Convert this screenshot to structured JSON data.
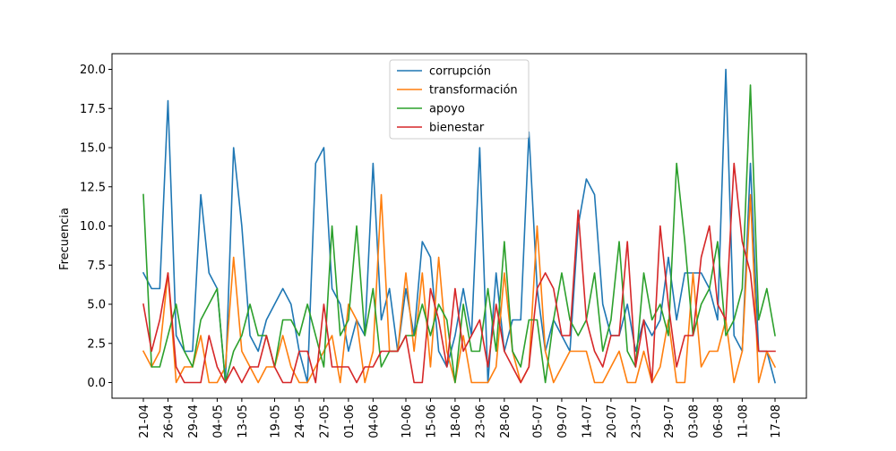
{
  "chart_data": {
    "type": "line",
    "title": "",
    "xlabel": "",
    "ylabel": "Frecuencia",
    "ylim": [
      -1.0,
      21.0
    ],
    "yticks": [
      0.0,
      2.5,
      5.0,
      7.5,
      10.0,
      12.5,
      15.0,
      17.5,
      20.0
    ],
    "ytick_labels": [
      "0.0",
      "2.5",
      "5.0",
      "7.5",
      "10.0",
      "12.5",
      "15.0",
      "17.5",
      "20.0"
    ],
    "x_count": 78,
    "xticks": [
      {
        "label": "21-04",
        "index": 0
      },
      {
        "label": "26-04",
        "index": 3
      },
      {
        "label": "29-04",
        "index": 6
      },
      {
        "label": "04-05",
        "index": 9
      },
      {
        "label": "13-05",
        "index": 12
      },
      {
        "label": "19-05",
        "index": 16
      },
      {
        "label": "24-05",
        "index": 19
      },
      {
        "label": "27-05",
        "index": 22
      },
      {
        "label": "01-06",
        "index": 25
      },
      {
        "label": "04-06",
        "index": 28
      },
      {
        "label": "10-06",
        "index": 32
      },
      {
        "label": "15-06",
        "index": 35
      },
      {
        "label": "18-06",
        "index": 38
      },
      {
        "label": "23-06",
        "index": 41
      },
      {
        "label": "28-06",
        "index": 44
      },
      {
        "label": "05-07",
        "index": 48
      },
      {
        "label": "09-07",
        "index": 51
      },
      {
        "label": "14-07",
        "index": 54
      },
      {
        "label": "20-07",
        "index": 57
      },
      {
        "label": "23-07",
        "index": 60
      },
      {
        "label": "29-07",
        "index": 64
      },
      {
        "label": "03-08",
        "index": 67
      },
      {
        "label": "06-08",
        "index": 70
      },
      {
        "label": "11-08",
        "index": 73
      },
      {
        "label": "17-08",
        "index": 77
      }
    ],
    "legend_position": "upper center",
    "series": [
      {
        "name": "corrupción",
        "color": "#1f77b4",
        "values": [
          7,
          6,
          6,
          18,
          3,
          2,
          2,
          12,
          7,
          6,
          0,
          15,
          10,
          3,
          2,
          4,
          5,
          6,
          5,
          2,
          0,
          14,
          15,
          6,
          5,
          2,
          4,
          3,
          14,
          4,
          6,
          2,
          6,
          3,
          9,
          8,
          2,
          1,
          3,
          6,
          3,
          15,
          0,
          7,
          2,
          4,
          4,
          16,
          6,
          2,
          4,
          3,
          2,
          10,
          13,
          12,
          5,
          3,
          3,
          5,
          2,
          4,
          3,
          4,
          8,
          4,
          7,
          7,
          7,
          6,
          4,
          20,
          3,
          2,
          14,
          2,
          2,
          0
        ]
      },
      {
        "name": "transformación",
        "color": "#ff7f0e",
        "values": [
          2,
          1,
          2,
          7,
          0,
          1,
          1,
          3,
          0,
          0,
          1,
          8,
          2,
          1,
          0,
          1,
          1,
          3,
          1,
          0,
          0,
          1,
          2,
          3,
          0,
          5,
          4,
          0,
          2,
          12,
          2,
          2,
          7,
          2,
          7,
          1,
          8,
          2,
          0,
          3,
          0,
          0,
          0,
          1,
          7,
          2,
          0,
          1,
          10,
          2,
          0,
          1,
          2,
          2,
          2,
          0,
          0,
          1,
          2,
          0,
          0,
          2,
          0,
          1,
          4,
          0,
          0,
          7,
          1,
          2,
          2,
          4,
          0,
          2,
          12,
          0,
          2,
          1
        ]
      },
      {
        "name": "apoyo",
        "color": "#2ca02c",
        "values": [
          12,
          1,
          1,
          3,
          5,
          2,
          1,
          4,
          5,
          6,
          0,
          2,
          3,
          5,
          3,
          3,
          1,
          4,
          4,
          3,
          5,
          3,
          1,
          10,
          3,
          4,
          10,
          3,
          6,
          1,
          2,
          2,
          3,
          3,
          5,
          3,
          5,
          4,
          0,
          5,
          2,
          2,
          6,
          2,
          9,
          2,
          1,
          4,
          4,
          0,
          4,
          7,
          4,
          3,
          4,
          7,
          2,
          4,
          9,
          2,
          1,
          7,
          4,
          5,
          3,
          14,
          9,
          3,
          5,
          6,
          9,
          3,
          4,
          6,
          19,
          4,
          6,
          3
        ]
      },
      {
        "name": "bienestar",
        "color": "#d62728",
        "values": [
          5,
          2,
          4,
          7,
          1,
          0,
          0,
          0,
          3,
          1,
          0,
          1,
          0,
          1,
          1,
          3,
          1,
          0,
          0,
          2,
          2,
          0,
          5,
          1,
          1,
          1,
          0,
          1,
          1,
          2,
          2,
          2,
          3,
          0,
          0,
          6,
          4,
          1,
          6,
          2,
          3,
          4,
          1,
          5,
          2,
          1,
          0,
          1,
          6,
          7,
          6,
          3,
          3,
          11,
          4,
          2,
          1,
          3,
          3,
          9,
          1,
          4,
          0,
          10,
          5,
          1,
          3,
          3,
          8,
          10,
          5,
          4,
          14,
          9,
          7,
          2,
          2,
          2
        ]
      }
    ]
  }
}
